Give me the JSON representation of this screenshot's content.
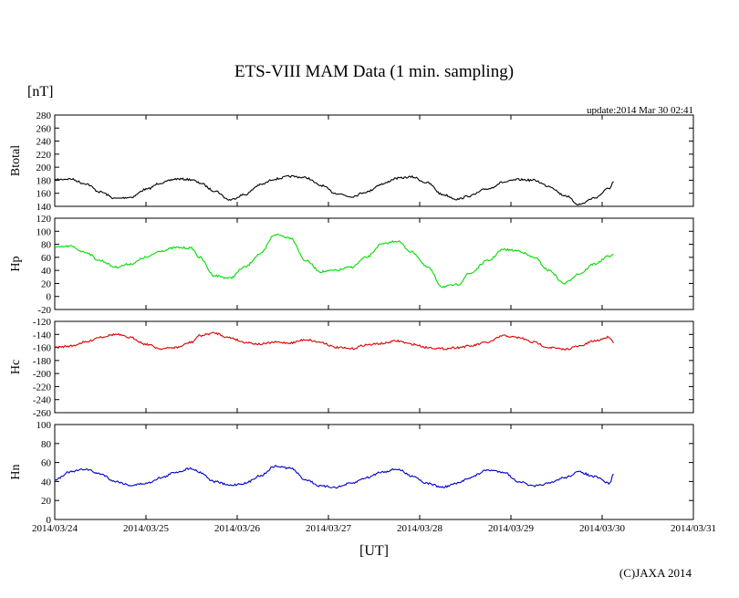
{
  "title": "ETS-VIII MAM Data (1 min. sampling)",
  "unit_label": "[nT]",
  "update_text": "update:2014 Mar 30 02:41",
  "xlabel": "[UT]",
  "copyright": "(C)JAXA 2014",
  "chart_data": [
    {
      "type": "line",
      "ylabel": "Btotal",
      "ylim": [
        140,
        280
      ],
      "yticks": [
        140,
        160,
        180,
        200,
        220,
        240,
        260,
        280
      ],
      "xlim": [
        "2014-03-24T00:00",
        "2014-03-31T00:00"
      ],
      "xticks": [
        "2014/03/24",
        "2014/03/25",
        "2014/03/26",
        "2014/03/27",
        "2014/03/28",
        "2014/03/29",
        "2014/03/30",
        "2014/03/31"
      ],
      "color": "#000000",
      "series": [
        {
          "x": [
            "2014-03-24T00:00",
            "2014-03-24T04:00",
            "2014-03-24T08:00",
            "2014-03-24T12:00",
            "2014-03-24T16:00",
            "2014-03-24T20:00",
            "2014-03-25T00:00",
            "2014-03-25T04:00",
            "2014-03-25T08:00",
            "2014-03-25T12:00",
            "2014-03-25T14:00",
            "2014-03-25T18:00",
            "2014-03-25T22:00",
            "2014-03-26T02:00",
            "2014-03-26T06:00",
            "2014-03-26T10:00",
            "2014-03-26T14:00",
            "2014-03-26T18:00",
            "2014-03-26T22:00",
            "2014-03-27T02:00",
            "2014-03-27T06:00",
            "2014-03-27T10:00",
            "2014-03-27T14:00",
            "2014-03-27T18:00",
            "2014-03-27T22:00",
            "2014-03-28T02:00",
            "2014-03-28T06:00",
            "2014-03-28T10:00",
            "2014-03-28T13:00",
            "2014-03-28T18:00",
            "2014-03-28T22:00",
            "2014-03-29T02:00",
            "2014-03-29T06:00",
            "2014-03-29T10:00",
            "2014-03-29T14:00",
            "2014-03-29T18:00",
            "2014-03-29T22:00",
            "2014-03-30T02:00",
            "2014-03-30T03:00"
          ],
          "y": [
            181,
            182,
            175,
            162,
            152,
            154,
            166,
            176,
            182,
            181,
            176,
            164,
            150,
            158,
            173,
            182,
            186,
            184,
            172,
            160,
            155,
            162,
            174,
            183,
            185,
            176,
            158,
            151,
            156,
            167,
            177,
            181,
            180,
            171,
            157,
            143,
            153,
            168,
            178
          ]
        }
      ]
    },
    {
      "type": "line",
      "ylabel": "Hp",
      "ylim": [
        -20,
        120
      ],
      "yticks": [
        -20,
        0,
        20,
        40,
        60,
        80,
        100,
        120
      ],
      "xlim": [
        "2014-03-24T00:00",
        "2014-03-31T00:00"
      ],
      "color": "#00dd00",
      "series": [
        {
          "x": [
            "2014-03-24T00:00",
            "2014-03-24T04:00",
            "2014-03-24T08:00",
            "2014-03-24T12:00",
            "2014-03-24T16:00",
            "2014-03-24T20:00",
            "2014-03-25T00:00",
            "2014-03-25T04:00",
            "2014-03-25T08:00",
            "2014-03-25T12:00",
            "2014-03-25T14:00",
            "2014-03-25T18:00",
            "2014-03-25T22:00",
            "2014-03-26T02:00",
            "2014-03-26T06:00",
            "2014-03-26T10:00",
            "2014-03-26T14:00",
            "2014-03-26T18:00",
            "2014-03-26T22:00",
            "2014-03-27T02:00",
            "2014-03-27T06:00",
            "2014-03-27T10:00",
            "2014-03-27T14:00",
            "2014-03-27T18:00",
            "2014-03-27T22:00",
            "2014-03-28T02:00",
            "2014-03-28T06:00",
            "2014-03-28T10:00",
            "2014-03-28T13:00",
            "2014-03-28T18:00",
            "2014-03-28T22:00",
            "2014-03-29T02:00",
            "2014-03-29T06:00",
            "2014-03-29T10:00",
            "2014-03-29T14:00",
            "2014-03-29T18:00",
            "2014-03-29T22:00",
            "2014-03-30T02:00",
            "2014-03-30T03:00"
          ],
          "y": [
            75,
            77,
            68,
            55,
            45,
            50,
            60,
            70,
            75,
            74,
            60,
            32,
            28,
            45,
            65,
            95,
            90,
            55,
            38,
            40,
            45,
            60,
            80,
            85,
            68,
            45,
            15,
            18,
            35,
            55,
            72,
            70,
            60,
            40,
            20,
            35,
            50,
            62,
            65
          ]
        }
      ]
    },
    {
      "type": "line",
      "ylabel": "Hc",
      "ylim": [
        -260,
        -120
      ],
      "yticks": [
        -260,
        -240,
        -220,
        -200,
        -180,
        -160,
        -140,
        -120
      ],
      "xlim": [
        "2014-03-24T00:00",
        "2014-03-31T00:00"
      ],
      "color": "#dd0000",
      "series": [
        {
          "x": [
            "2014-03-24T00:00",
            "2014-03-24T04:00",
            "2014-03-24T08:00",
            "2014-03-24T12:00",
            "2014-03-24T16:00",
            "2014-03-24T20:00",
            "2014-03-25T00:00",
            "2014-03-25T04:00",
            "2014-03-25T08:00",
            "2014-03-25T12:00",
            "2014-03-25T14:00",
            "2014-03-25T18:00",
            "2014-03-25T22:00",
            "2014-03-26T02:00",
            "2014-03-26T06:00",
            "2014-03-26T10:00",
            "2014-03-26T14:00",
            "2014-03-26T18:00",
            "2014-03-26T22:00",
            "2014-03-27T02:00",
            "2014-03-27T06:00",
            "2014-03-27T10:00",
            "2014-03-27T14:00",
            "2014-03-27T18:00",
            "2014-03-27T22:00",
            "2014-03-28T02:00",
            "2014-03-28T06:00",
            "2014-03-28T10:00",
            "2014-03-28T13:00",
            "2014-03-28T18:00",
            "2014-03-28T22:00",
            "2014-03-29T02:00",
            "2014-03-29T06:00",
            "2014-03-29T10:00",
            "2014-03-29T14:00",
            "2014-03-29T18:00",
            "2014-03-29T22:00",
            "2014-03-30T02:00",
            "2014-03-30T03:00"
          ],
          "y": [
            -160,
            -158,
            -152,
            -144,
            -140,
            -145,
            -155,
            -162,
            -160,
            -152,
            -142,
            -138,
            -145,
            -152,
            -155,
            -152,
            -153,
            -148,
            -152,
            -160,
            -162,
            -156,
            -154,
            -150,
            -155,
            -160,
            -162,
            -160,
            -158,
            -152,
            -142,
            -145,
            -152,
            -160,
            -163,
            -158,
            -150,
            -144,
            -153
          ]
        }
      ]
    },
    {
      "type": "line",
      "ylabel": "Hn",
      "ylim": [
        0,
        100
      ],
      "yticks": [
        0,
        20,
        40,
        60,
        80,
        100
      ],
      "xlim": [
        "2014-03-24T00:00",
        "2014-03-31T00:00"
      ],
      "color": "#0000cc",
      "series": [
        {
          "x": [
            "2014-03-24T00:00",
            "2014-03-24T04:00",
            "2014-03-24T08:00",
            "2014-03-24T12:00",
            "2014-03-24T16:00",
            "2014-03-24T20:00",
            "2014-03-25T00:00",
            "2014-03-25T04:00",
            "2014-03-25T08:00",
            "2014-03-25T12:00",
            "2014-03-25T14:00",
            "2014-03-25T18:00",
            "2014-03-25T22:00",
            "2014-03-26T02:00",
            "2014-03-26T06:00",
            "2014-03-26T10:00",
            "2014-03-26T14:00",
            "2014-03-26T18:00",
            "2014-03-26T22:00",
            "2014-03-27T02:00",
            "2014-03-27T06:00",
            "2014-03-27T10:00",
            "2014-03-27T14:00",
            "2014-03-27T18:00",
            "2014-03-27T22:00",
            "2014-03-28T02:00",
            "2014-03-28T06:00",
            "2014-03-28T10:00",
            "2014-03-28T13:00",
            "2014-03-28T18:00",
            "2014-03-28T22:00",
            "2014-03-29T02:00",
            "2014-03-29T06:00",
            "2014-03-29T10:00",
            "2014-03-29T14:00",
            "2014-03-29T18:00",
            "2014-03-29T22:00",
            "2014-03-30T02:00",
            "2014-03-30T03:00"
          ],
          "y": [
            42,
            50,
            53,
            48,
            40,
            36,
            38,
            44,
            50,
            54,
            50,
            40,
            36,
            38,
            46,
            56,
            54,
            42,
            35,
            34,
            38,
            44,
            50,
            53,
            46,
            38,
            34,
            38,
            44,
            52,
            50,
            40,
            35,
            38,
            44,
            50,
            45,
            38,
            48
          ]
        }
      ]
    }
  ]
}
